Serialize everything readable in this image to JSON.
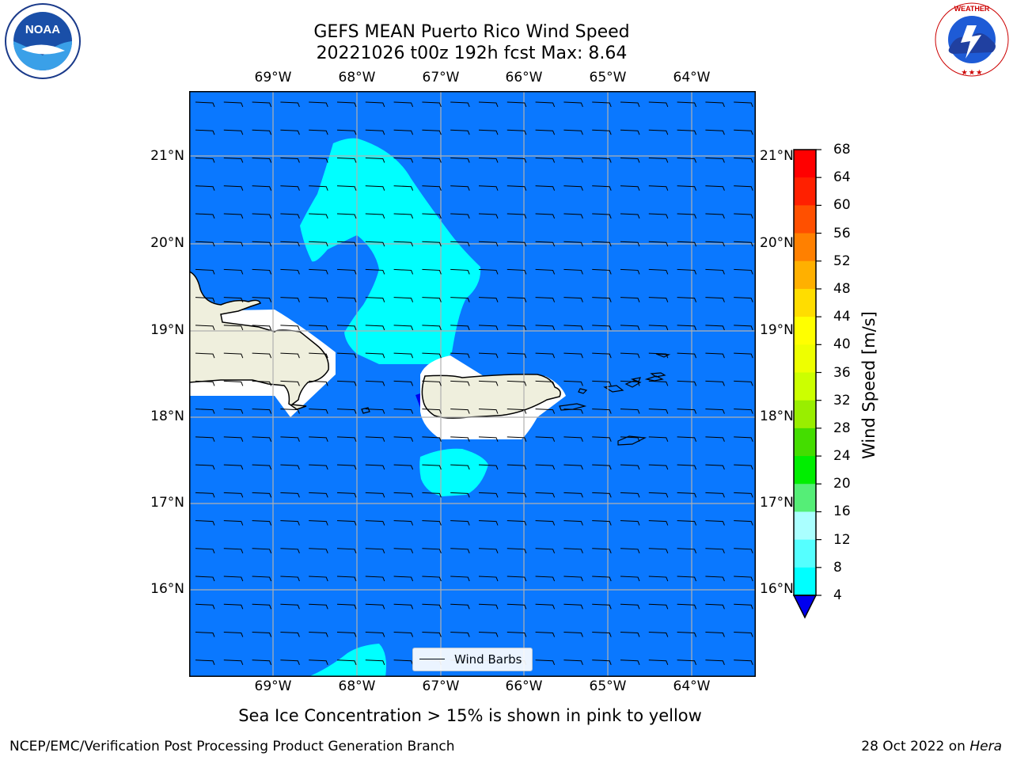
{
  "title": {
    "line1": "GEFS MEAN Puerto Rico Wind Speed",
    "line2": "20221026 t00z 192h fcst   Max: 8.64"
  },
  "map": {
    "lon_ticks": [
      "69°W",
      "68°W",
      "67°W",
      "66°W",
      "65°W",
      "64°W"
    ],
    "lat_ticks": [
      "21°N",
      "20°N",
      "19°N",
      "18°N",
      "17°N",
      "16°N"
    ],
    "ocean_color": "#0a78ff",
    "light_wind_color": "#00ffff",
    "land_color": "#efefdd",
    "legend_label": "Wind Barbs"
  },
  "colorbar": {
    "label": "Wind Speed [m/s]",
    "ticks": [
      "68",
      "64",
      "60",
      "56",
      "52",
      "48",
      "44",
      "40",
      "36",
      "32",
      "28",
      "24",
      "20",
      "16",
      "12",
      "8",
      "4"
    ],
    "colors_top_to_bottom": [
      "#ff0000",
      "#ff2000",
      "#ff5000",
      "#ff8000",
      "#ffb000",
      "#ffdd00",
      "#ffff00",
      "#eeff00",
      "#ccff00",
      "#99ee00",
      "#44dd00",
      "#00ee00",
      "#55ee77",
      "#aaffff",
      "#55ffff",
      "#00ffff",
      "#0a78ff"
    ],
    "extend_color": "#0000ee"
  },
  "sea_ice_note": "Sea Ice Concentration > 15% is shown in pink to yellow",
  "footer": {
    "left": "NCEP/EMC/Verification Post Processing Product Generation Branch",
    "right_date": "28 Oct 2022 on",
    "right_host": "Hera"
  },
  "logos": {
    "left_text": "NOAA",
    "right_text": "NATIONAL WEATHER SERVICE"
  }
}
